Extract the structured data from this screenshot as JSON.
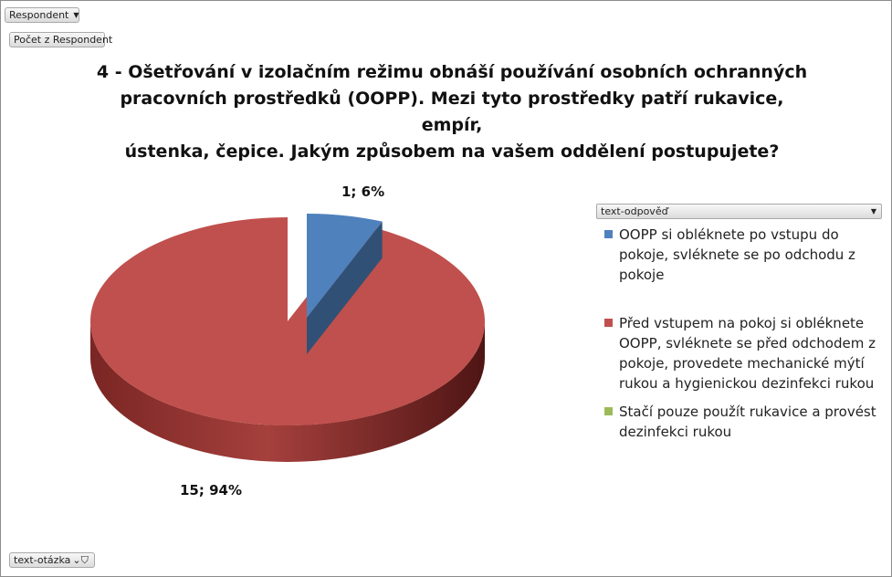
{
  "filters": {
    "respondent_label": "Respondent",
    "count_label": "Počet z Respondent",
    "question_label": "text-otázka",
    "answer_label": "text-odpověď"
  },
  "chart_data": {
    "type": "pie",
    "title": "4 - Ošetřování v izolačním režimu obnáší používání osobních ochranných pracovních prostředků (OOPP). Mezi tyto prostředky patří rukavice, empír, ústenka, čepice. Jakým způsobem na vašem oddělení postupujete?",
    "title_lines": [
      "4 - Ošetřování v izolačním režimu obnáší používání osobních ochranných",
      "pracovních prostředků (OOPP). Mezi tyto prostředky patří rukavice, empír,",
      "ústenka, čepice. Jakým způsobem na vašem oddělení postupujete?"
    ],
    "legend_position": "right",
    "slices": [
      {
        "name": "OOPP si obléknete po vstupu do pokoje, svléknete se po odchodu z pokoje",
        "value": 1,
        "percent": 6,
        "label": "1; 6%",
        "color": "#4f81bd",
        "exploded": true
      },
      {
        "name": "Před vstupem na pokoj si obléknete OOPP, svléknete se před odchodem z pokoje, provedete mechanické mýtí rukou a hygienickou dezinfekci rukou",
        "value": 15,
        "percent": 94,
        "label": "15; 94%",
        "color": "#c0504d",
        "exploded": false
      },
      {
        "name": "Stačí pouze použít rukavice a provést dezinfekci rukou",
        "value": 0,
        "percent": 0,
        "label": "",
        "color": "#9bbb59",
        "exploded": false
      }
    ],
    "legend_lines": [
      [
        "OOPP si obléknete po vstupu do",
        "pokoje, svléknete se po odchodu z",
        "pokoje"
      ],
      [
        "Před vstupem na pokoj si obléknete",
        "OOPP, svléknete se před odchodem z",
        "pokoje, provedete mechanické mýtí",
        "rukou a hygienickou dezinfekci rukou"
      ],
      [
        "Stačí pouze použít rukavice a provést",
        "dezinfekci rukou"
      ]
    ]
  }
}
